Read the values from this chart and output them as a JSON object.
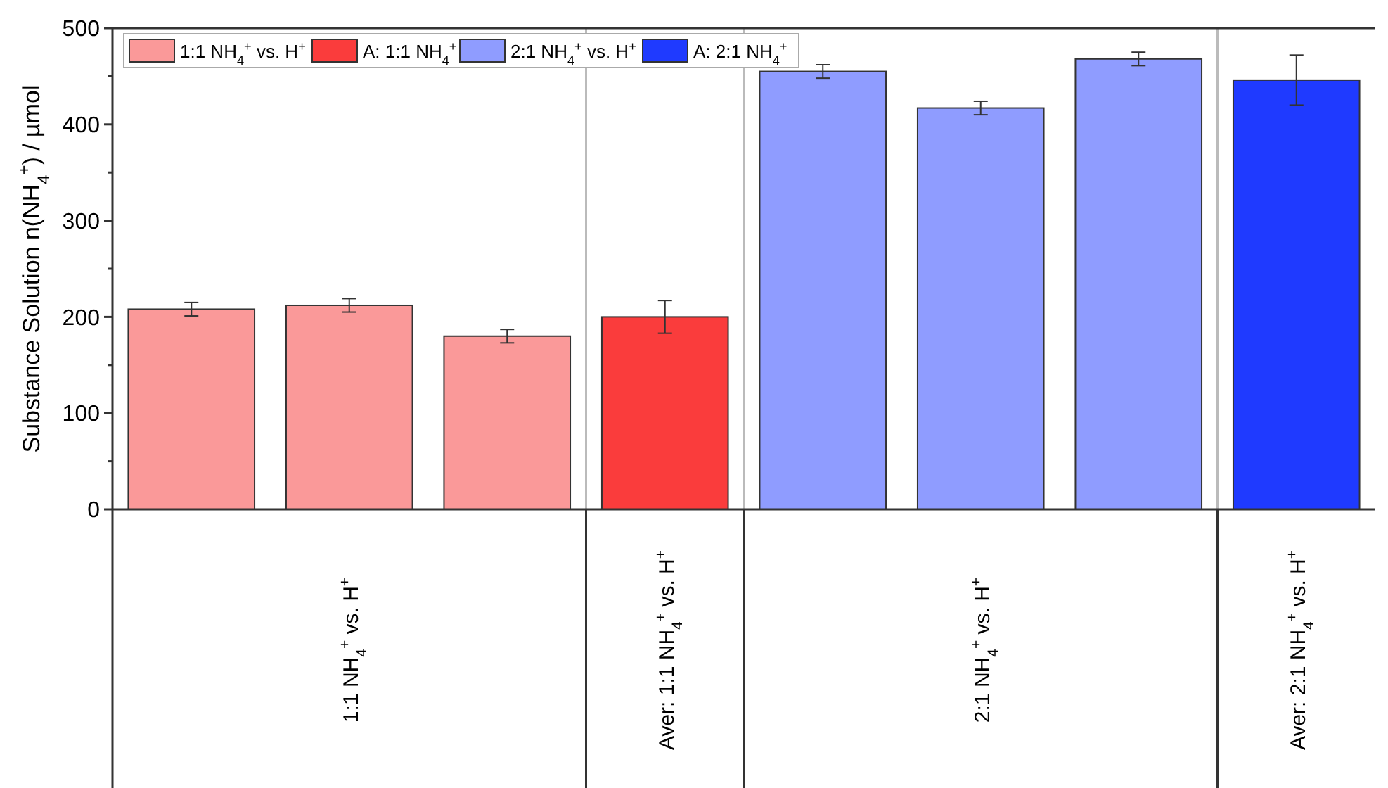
{
  "chart_data": {
    "type": "bar",
    "ylabel": "Substance Solution n(NH$_{4}$$^{+}$) / µmol",
    "categories": [
      null,
      null,
      null,
      null,
      null,
      null,
      null,
      null
    ],
    "series": [
      {
        "name": "1:1 NH$_{4}$$^{+}$ vs. H$^{+}$",
        "color": "#fa9999",
        "values": [
          208,
          212,
          180,
          null,
          null,
          null,
          null,
          null
        ],
        "errors": [
          7,
          7,
          7,
          null,
          null,
          null,
          null,
          null
        ]
      },
      {
        "name": "A: 1:1 NH$_{4}$$^{+}$",
        "color": "#fa3c3c",
        "values": [
          null,
          null,
          null,
          200,
          null,
          null,
          null,
          null
        ],
        "errors": [
          null,
          null,
          null,
          17,
          null,
          null,
          null,
          null
        ]
      },
      {
        "name": "2:1 NH$_{4}$$^{+}$ vs. H$^{+}$",
        "color": "#8f9cff",
        "values": [
          null,
          null,
          null,
          null,
          455,
          417,
          468,
          null
        ],
        "errors": [
          null,
          null,
          null,
          null,
          7,
          7,
          7,
          null
        ]
      },
      {
        "name": "A: 2:1 NH$_{4}$$^{+}$",
        "color": "#1f3aff",
        "values": [
          null,
          null,
          null,
          null,
          null,
          null,
          null,
          446
        ],
        "errors": [
          null,
          null,
          null,
          null,
          null,
          null,
          null,
          26
        ]
      }
    ],
    "ylim": [
      0,
      500
    ],
    "yticks": [
      0,
      {
        "value": 50,
        "label": null
      },
      100,
      {
        "value": 150,
        "label": null
      },
      200,
      {
        "value": 250,
        "label": null
      },
      300,
      {
        "value": 350,
        "label": null
      },
      400,
      {
        "value": 450,
        "label": null
      },
      500
    ],
    "annotations": [
      "1:1 NH$_{4}$$^{+}$ vs. H$^{+}$",
      "Aver: 1:1 NH$_{4}$$^{+}$ vs. H$^{+}$",
      "2:1 NH$_{4}$$^{+}$ vs. H$^{+}$",
      "Aver: 2:1 NH$_{4}$$^{+}$ vs. H$^{+}$"
    ],
    "legend": "top left",
    "grid": false
  }
}
